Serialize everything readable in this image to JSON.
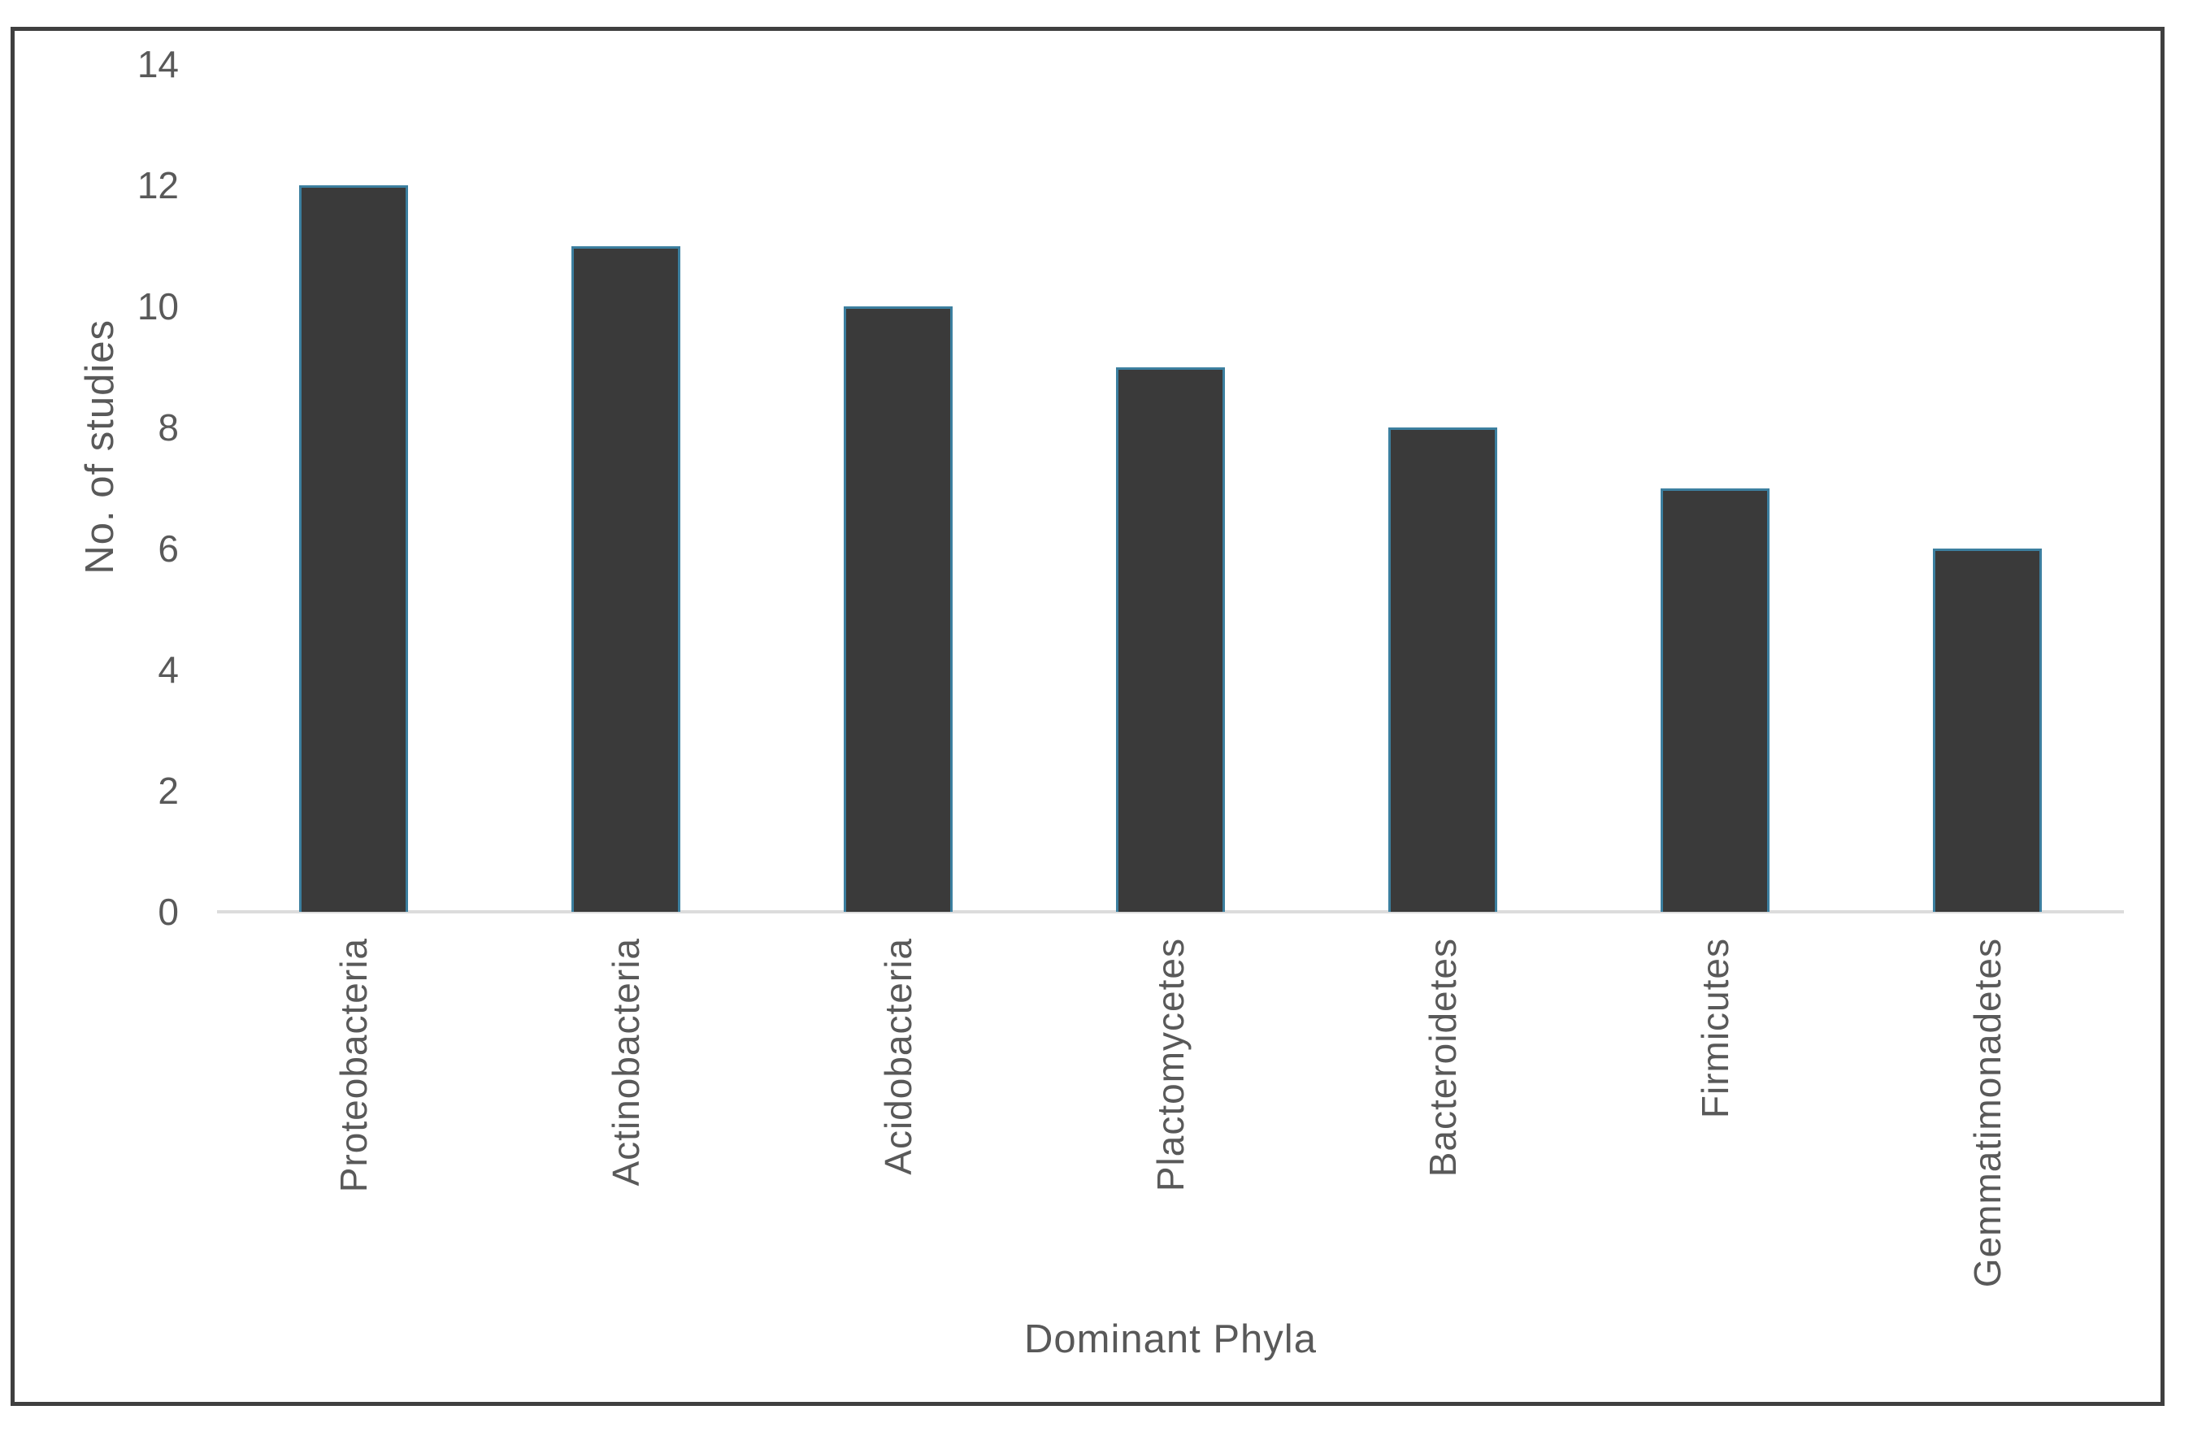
{
  "chart_data": {
    "type": "bar",
    "title": "",
    "xlabel": "Dominant Phyla",
    "ylabel": "No. of studies",
    "categories": [
      "Proteobacteria",
      "Actinobacteria",
      "Acidobacteria",
      "Plactomycetes",
      "Bacteroidetes",
      "Firmicutes",
      "Gemmatimonadetes"
    ],
    "values": [
      12,
      11,
      10,
      9,
      8,
      7,
      6
    ],
    "y_ticks": [
      0,
      2,
      4,
      6,
      8,
      10,
      12,
      14
    ],
    "ylim": [
      0,
      14
    ],
    "grid": "off",
    "legend": "none",
    "colors": {
      "bar_fill": "#3a3a3a",
      "bar_edge": "#3c7f9f",
      "axis_line": "#dcdcdc",
      "frame_border": "#3f3f3f",
      "text": "#595959",
      "background": "#ffffff"
    }
  }
}
